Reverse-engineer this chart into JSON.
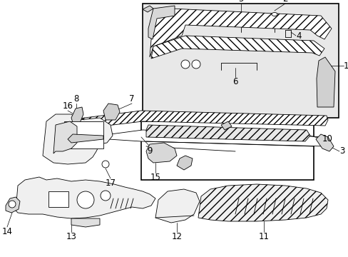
{
  "bg_color": "#ffffff",
  "fig_width": 4.89,
  "fig_height": 3.6,
  "dpi": 100,
  "label_fontsize": 8.5,
  "line_color": "#000000",
  "box1_fill": "#e8e8e8",
  "hatch_color": "#aaaaaa"
}
